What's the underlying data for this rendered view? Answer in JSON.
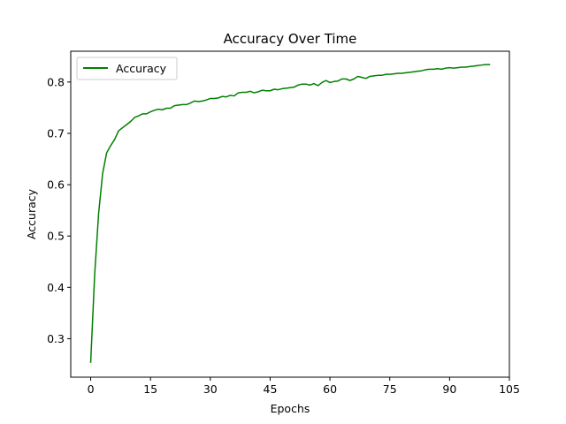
{
  "chart_data": {
    "type": "line",
    "title": "Accuracy Over Time",
    "xlabel": "Epochs",
    "ylabel": "Accuracy",
    "xlim": [
      -5,
      105
    ],
    "ylim": [
      0.225,
      0.86
    ],
    "xticks": [
      0,
      15,
      30,
      45,
      60,
      75,
      90,
      105
    ],
    "yticks": [
      0.3,
      0.4,
      0.5,
      0.6,
      0.7,
      0.8
    ],
    "ytick_labels": [
      "0.3",
      "0.4",
      "0.5",
      "0.6",
      "0.7",
      "0.8"
    ],
    "grid": false,
    "legend_position": "top-left",
    "series": [
      {
        "name": "Accuracy",
        "color": "#008000",
        "x": [
          0,
          1,
          2,
          3,
          4,
          5,
          6,
          7,
          8,
          9,
          10,
          11,
          12,
          13,
          14,
          15,
          16,
          17,
          18,
          19,
          20,
          21,
          22,
          23,
          24,
          25,
          26,
          27,
          28,
          29,
          30,
          31,
          32,
          33,
          34,
          35,
          36,
          37,
          38,
          39,
          40,
          41,
          42,
          43,
          44,
          45,
          46,
          47,
          48,
          49,
          50,
          51,
          52,
          53,
          54,
          55,
          56,
          57,
          58,
          59,
          60,
          61,
          62,
          63,
          64,
          65,
          66,
          67,
          68,
          69,
          70,
          71,
          72,
          73,
          74,
          75,
          76,
          77,
          78,
          79,
          80,
          81,
          82,
          83,
          84,
          85,
          86,
          87,
          88,
          89,
          90,
          91,
          92,
          93,
          94,
          95,
          96,
          97,
          98,
          99,
          100
        ],
        "y": [
          0.254,
          0.425,
          0.545,
          0.622,
          0.662,
          0.676,
          0.688,
          0.705,
          0.711,
          0.717,
          0.723,
          0.731,
          0.734,
          0.738,
          0.738,
          0.742,
          0.745,
          0.747,
          0.746,
          0.749,
          0.749,
          0.754,
          0.755,
          0.756,
          0.756,
          0.759,
          0.763,
          0.762,
          0.763,
          0.765,
          0.768,
          0.768,
          0.769,
          0.772,
          0.771,
          0.774,
          0.773,
          0.779,
          0.78,
          0.78,
          0.782,
          0.779,
          0.781,
          0.784,
          0.783,
          0.783,
          0.786,
          0.785,
          0.787,
          0.788,
          0.789,
          0.79,
          0.794,
          0.796,
          0.796,
          0.794,
          0.797,
          0.793,
          0.799,
          0.803,
          0.799,
          0.801,
          0.802,
          0.806,
          0.806,
          0.803,
          0.806,
          0.811,
          0.809,
          0.807,
          0.811,
          0.812,
          0.813,
          0.813,
          0.815,
          0.815,
          0.816,
          0.817,
          0.817,
          0.818,
          0.819,
          0.82,
          0.821,
          0.822,
          0.824,
          0.825,
          0.825,
          0.826,
          0.825,
          0.827,
          0.828,
          0.827,
          0.828,
          0.829,
          0.829,
          0.83,
          0.831,
          0.832,
          0.833,
          0.834,
          0.834
        ]
      }
    ]
  }
}
